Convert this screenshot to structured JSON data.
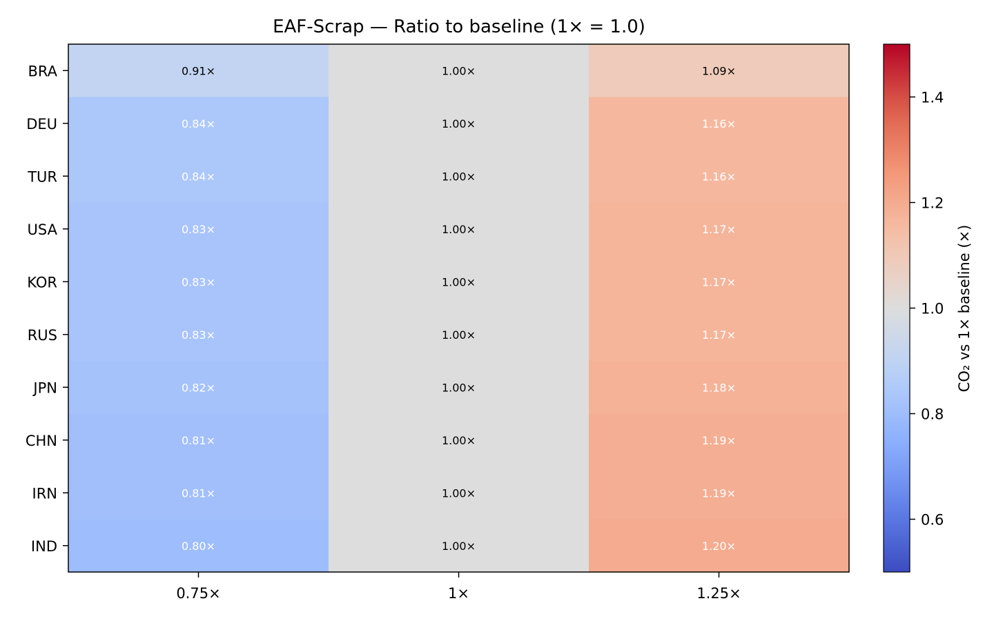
{
  "chart_data": {
    "type": "heatmap",
    "title": "EAF-Scrap — Ratio to baseline (1× = 1.0)",
    "x_categories": [
      "0.75×",
      "1×",
      "1.25×"
    ],
    "y_categories": [
      "BRA",
      "DEU",
      "TUR",
      "USA",
      "KOR",
      "RUS",
      "JPN",
      "CHN",
      "IRN",
      "IND"
    ],
    "values": [
      [
        0.91,
        1.0,
        1.09
      ],
      [
        0.84,
        1.0,
        1.16
      ],
      [
        0.84,
        1.0,
        1.16
      ],
      [
        0.83,
        1.0,
        1.17
      ],
      [
        0.83,
        1.0,
        1.17
      ],
      [
        0.83,
        1.0,
        1.17
      ],
      [
        0.82,
        1.0,
        1.18
      ],
      [
        0.81,
        1.0,
        1.19
      ],
      [
        0.81,
        1.0,
        1.19
      ],
      [
        0.8,
        1.0,
        1.2
      ]
    ],
    "cell_labels": [
      [
        "0.91×",
        "1.00×",
        "1.09×"
      ],
      [
        "0.84×",
        "1.00×",
        "1.16×"
      ],
      [
        "0.84×",
        "1.00×",
        "1.16×"
      ],
      [
        "0.83×",
        "1.00×",
        "1.17×"
      ],
      [
        "0.83×",
        "1.00×",
        "1.17×"
      ],
      [
        "0.83×",
        "1.00×",
        "1.17×"
      ],
      [
        "0.82×",
        "1.00×",
        "1.18×"
      ],
      [
        "0.81×",
        "1.00×",
        "1.19×"
      ],
      [
        "0.81×",
        "1.00×",
        "1.19×"
      ],
      [
        "0.80×",
        "1.00×",
        "1.20×"
      ]
    ],
    "colormap": "coolwarm",
    "color_range": [
      0.5,
      1.5
    ],
    "colorbar": {
      "label": "CO₂ vs 1× baseline (×)",
      "ticks": [
        0.6,
        0.8,
        1.0,
        1.2,
        1.4
      ],
      "tick_labels": [
        "0.6",
        "0.8",
        "1.0",
        "1.2",
        "1.4"
      ]
    },
    "grid": false
  }
}
